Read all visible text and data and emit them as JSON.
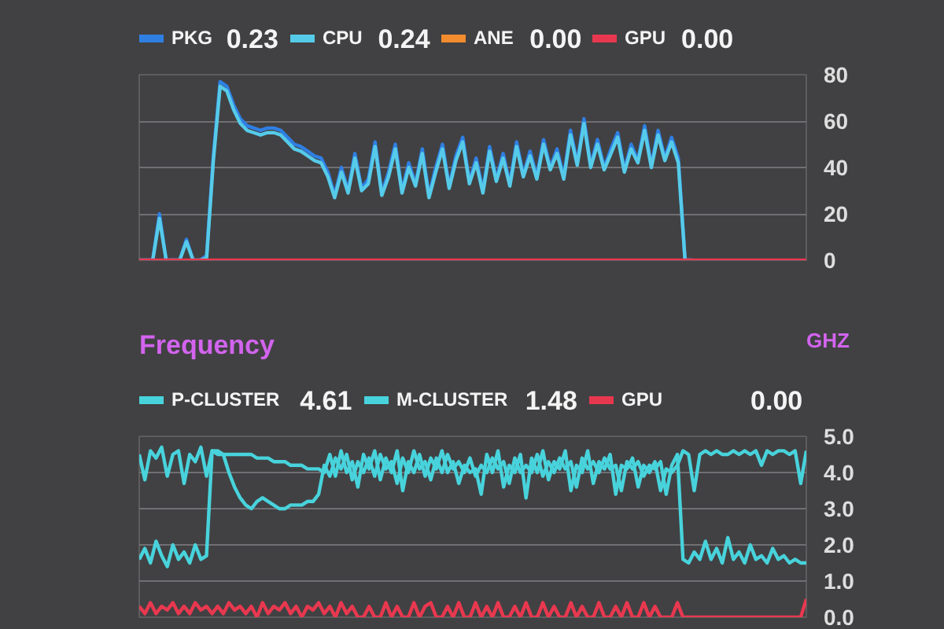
{
  "chart_data": [
    {
      "type": "line",
      "categories": [
        null,
        null,
        null,
        null,
        null,
        null,
        null,
        null,
        null,
        null,
        null,
        null,
        null,
        null,
        null,
        null,
        null,
        null,
        null,
        null,
        null,
        null,
        null,
        null,
        null,
        null,
        null,
        null,
        null,
        null,
        null,
        null,
        null,
        null,
        null,
        null,
        null,
        null,
        null,
        null,
        null,
        null,
        null,
        null,
        null,
        null,
        null,
        null,
        null,
        null,
        null,
        null,
        null,
        null,
        null,
        null,
        null,
        null,
        null,
        null,
        null,
        null,
        null,
        null,
        null,
        null,
        null,
        null,
        null,
        null,
        null,
        null,
        null,
        null,
        null,
        null,
        null,
        null,
        null,
        null,
        null,
        null,
        null,
        null,
        null,
        null,
        null,
        null,
        null,
        null,
        null,
        null,
        null,
        null,
        null,
        null,
        null,
        null,
        null,
        null
      ],
      "series": [
        {
          "name": "PKG",
          "color": "#2f7fe3",
          "values": [
            0,
            0,
            0,
            20,
            0,
            0,
            0,
            9,
            0,
            0,
            2,
            45,
            77,
            75,
            67,
            61,
            58,
            57,
            56,
            57,
            57,
            56,
            53,
            50,
            49,
            47,
            45,
            44,
            38,
            28,
            40,
            30,
            46,
            31,
            35,
            51,
            29,
            38,
            50,
            30,
            42,
            33,
            48,
            28,
            40,
            50,
            32,
            45,
            53,
            34,
            44,
            30,
            49,
            35,
            46,
            33,
            51,
            37,
            47,
            36,
            52,
            40,
            48,
            36,
            56,
            42,
            61,
            41,
            52,
            40,
            48,
            55,
            39,
            50,
            43,
            58,
            41,
            56,
            44,
            53,
            44,
            0,
            0,
            null,
            null,
            null,
            null,
            null,
            null,
            null,
            null,
            null,
            null,
            null,
            null,
            null,
            null,
            null,
            null,
            null
          ]
        },
        {
          "name": "CPU",
          "color": "#56cbe9",
          "values": [
            0,
            0,
            0,
            18,
            0,
            0,
            0,
            8,
            0,
            0,
            1,
            43,
            75,
            73,
            65,
            59,
            56,
            55,
            54,
            55,
            55,
            54,
            51,
            48,
            47,
            45,
            43,
            42,
            36,
            27,
            38,
            29,
            44,
            30,
            33,
            49,
            28,
            36,
            48,
            29,
            40,
            32,
            46,
            27,
            38,
            48,
            31,
            43,
            51,
            33,
            42,
            29,
            47,
            34,
            44,
            32,
            49,
            36,
            45,
            35,
            50,
            39,
            46,
            35,
            54,
            41,
            59,
            40,
            50,
            39,
            46,
            53,
            38,
            48,
            42,
            56,
            40,
            54,
            43,
            51,
            42,
            0,
            0,
            null,
            null,
            null,
            null,
            null,
            null,
            null,
            null,
            null,
            null,
            null,
            null,
            null,
            null,
            null,
            null,
            null
          ]
        },
        {
          "name": "ANE",
          "color": "#f28c2e",
          "values": [
            null,
            null,
            null,
            null,
            null,
            null,
            null,
            null,
            null,
            null,
            null,
            null,
            null,
            null,
            null,
            null,
            null,
            null,
            null,
            null,
            null,
            null,
            null,
            null,
            null,
            null,
            null,
            null,
            null,
            null,
            null,
            null,
            null,
            null,
            null,
            null,
            null,
            null,
            null,
            null,
            null,
            null,
            null,
            null,
            null,
            null,
            null,
            null,
            null,
            null,
            null,
            null,
            null,
            null,
            null,
            null,
            null,
            null,
            null,
            null,
            null,
            null,
            null,
            null,
            null,
            null,
            null,
            null,
            null,
            null,
            null,
            null,
            null,
            null,
            null,
            null,
            null,
            null,
            null,
            null,
            null,
            null,
            null,
            null,
            null,
            null,
            null,
            null,
            null,
            null,
            null,
            null,
            null,
            null,
            null,
            null,
            null,
            null,
            null,
            null
          ]
        },
        {
          "name": "GPU",
          "color": "#e8384f",
          "values": [
            0,
            0,
            0,
            0,
            0,
            0,
            0,
            0,
            0,
            0,
            0,
            0,
            0,
            0,
            0,
            0,
            0,
            0,
            0,
            0,
            0,
            0,
            0,
            0,
            0,
            0,
            0,
            0,
            0,
            0,
            0,
            0,
            0,
            0,
            0,
            0,
            0,
            0,
            0,
            0,
            0,
            0,
            0,
            0,
            0,
            0,
            0,
            0,
            0,
            0,
            0,
            0,
            0,
            0,
            0,
            0,
            0,
            0,
            0,
            0,
            0,
            0,
            0,
            0,
            0,
            0,
            0,
            0,
            0,
            0,
            0,
            0,
            0,
            0,
            0,
            0,
            0,
            0,
            0,
            0,
            0,
            0,
            0,
            0,
            0,
            0,
            0,
            0,
            0,
            0,
            0,
            0,
            0,
            0,
            0,
            0,
            0,
            0,
            0,
            0
          ]
        }
      ],
      "ylim": [
        0,
        80
      ],
      "yticks": [
        0,
        20,
        40,
        60,
        80
      ],
      "grid": "y",
      "legend": "top",
      "tick_labels": "y",
      "annotations": [
        "0.23",
        "0.24",
        "0.00",
        "0.00"
      ]
    },
    {
      "type": "line",
      "title": "Frequency",
      "ylabel": "GHZ",
      "categories": [
        null,
        null,
        null,
        null,
        null,
        null,
        null,
        null,
        null,
        null,
        null,
        null,
        null,
        null,
        null,
        null,
        null,
        null,
        null,
        null,
        null,
        null,
        null,
        null,
        null,
        null,
        null,
        null,
        null,
        null,
        null,
        null,
        null,
        null,
        null,
        null,
        null,
        null,
        null,
        null,
        null,
        null,
        null,
        null,
        null,
        null,
        null,
        null,
        null,
        null,
        null,
        null,
        null,
        null,
        null,
        null,
        null,
        null,
        null,
        null,
        null,
        null,
        null,
        null,
        null,
        null,
        null,
        null,
        null,
        null,
        null,
        null,
        null,
        null,
        null,
        null,
        null,
        null,
        null,
        null,
        null,
        null,
        null,
        null,
        null,
        null,
        null,
        null,
        null,
        null,
        null,
        null,
        null,
        null,
        null,
        null,
        null,
        null,
        null,
        null,
        null,
        null,
        null,
        null,
        null,
        null,
        null,
        null,
        null,
        null,
        null,
        null,
        null,
        null,
        null,
        null,
        null,
        null,
        null,
        null
      ],
      "series": [
        {
          "name": "P-CLUSTER",
          "color": "#48d3dc",
          "values": [
            4.5,
            3.8,
            4.6,
            4.4,
            4.7,
            3.9,
            4.5,
            4.6,
            3.7,
            4.5,
            4.3,
            4.7,
            3.9,
            4.6,
            4.5,
            4.5,
            4.5,
            4.5,
            4.5,
            4.5,
            4.5,
            4.4,
            4.4,
            4.4,
            4.3,
            4.3,
            4.3,
            4.2,
            4.2,
            4.2,
            4.1,
            4.1,
            4.1,
            4.0,
            4.5,
            3.9,
            4.6,
            4.0,
            4.3,
            3.6,
            4.5,
            4.1,
            4.6,
            3.8,
            4.4,
            4.0,
            4.6,
            3.5,
            4.3,
            4.0,
            4.5,
            3.9,
            4.4,
            4.1,
            4.6,
            4.0,
            4.3,
            3.7,
            4.2,
            4.0,
            4.1,
            3.4,
            4.5,
            4.0,
            4.6,
            3.6,
            4.2,
            4.0,
            4.5,
            3.3,
            4.4,
            4.0,
            4.6,
            3.8,
            4.3,
            4.1,
            4.6,
            3.5,
            4.2,
            4.0,
            4.6,
            3.7,
            4.3,
            4.1,
            4.5,
            3.4,
            4.2,
            4.1,
            4.4,
            3.6,
            4.2,
            4.0,
            4.3,
            3.5,
            4.1,
            4.0,
            4.2,
            4.6,
            4.5,
            3.5,
            4.5,
            4.6,
            4.5,
            4.6,
            4.5,
            4.5,
            4.6,
            4.5,
            4.6,
            4.5,
            4.6,
            4.2,
            4.6,
            4.5,
            4.6,
            4.6,
            4.5,
            4.6,
            3.7,
            4.6
          ]
        },
        {
          "name": "M-CLUSTER",
          "color": "#48d3dc",
          "values": [
            1.6,
            1.9,
            1.5,
            2.1,
            1.7,
            1.4,
            2.0,
            1.6,
            1.8,
            1.5,
            2.0,
            1.6,
            1.7,
            4.6,
            4.6,
            4.5,
            4.0,
            3.6,
            3.3,
            3.1,
            3.0,
            3.2,
            3.3,
            3.2,
            3.1,
            3.0,
            3.0,
            3.1,
            3.1,
            3.1,
            3.2,
            3.2,
            3.4,
            4.2,
            3.9,
            4.4,
            4.1,
            4.5,
            3.8,
            4.3,
            4.0,
            4.4,
            3.9,
            4.5,
            4.1,
            4.3,
            3.7,
            4.4,
            4.0,
            4.6,
            4.1,
            4.3,
            3.8,
            4.4,
            4.0,
            4.5,
            4.1,
            4.3,
            4.0,
            4.4,
            3.9,
            4.2,
            4.0,
            4.4,
            4.1,
            4.3,
            3.7,
            4.4,
            4.0,
            4.2,
            4.0,
            4.5,
            3.9,
            4.3,
            4.0,
            4.4,
            4.1,
            4.3,
            3.6,
            4.4,
            4.1,
            4.3,
            4.0,
            4.4,
            4.1,
            4.2,
            3.5,
            4.3,
            4.1,
            4.3,
            3.9,
            4.2,
            4.1,
            4.3,
            3.4,
            4.2,
            4.5,
            1.6,
            1.5,
            1.8,
            1.6,
            2.1,
            1.6,
            1.9,
            1.5,
            2.2,
            1.6,
            1.8,
            1.5,
            2.0,
            1.6,
            1.7,
            1.5,
            1.9,
            1.6,
            1.7,
            1.5,
            1.6,
            1.5,
            1.5
          ]
        },
        {
          "name": "GPU",
          "color": "#e8384f",
          "values": [
            0.3,
            0.1,
            0.4,
            0.1,
            0.3,
            0.2,
            0.4,
            0.1,
            0.3,
            0.1,
            0.4,
            0.2,
            0.3,
            0.1,
            0.3,
            0.1,
            0.4,
            0.2,
            0.3,
            0.1,
            0.3,
            0,
            0.4,
            0.1,
            0.3,
            0.2,
            0.4,
            0.1,
            0.3,
            0,
            0.3,
            0.2,
            0.4,
            0.1,
            0.3,
            0,
            0.4,
            0.1,
            0.3,
            0,
            0,
            0.3,
            0,
            0,
            0.4,
            0,
            0.3,
            0,
            0,
            0.4,
            0,
            0.3,
            0.4,
            0,
            0,
            0.3,
            0,
            0.4,
            0,
            0,
            0.4,
            0,
            0.3,
            0,
            0.4,
            0,
            0,
            0.3,
            0,
            0.4,
            0,
            0,
            0.4,
            0,
            0.3,
            0,
            0,
            0.4,
            0,
            0.3,
            0,
            0,
            0.4,
            0,
            0,
            0.3,
            0,
            0.4,
            0,
            0,
            0.4,
            0,
            0.3,
            0,
            0,
            0,
            0.4,
            0,
            0,
            0,
            0,
            0,
            0,
            0,
            0,
            0,
            0,
            0,
            0,
            0,
            0,
            0,
            0,
            0,
            0,
            0,
            0,
            0,
            0,
            0.5
          ]
        }
      ],
      "ylim": [
        0,
        5
      ],
      "yticks": [
        {
          "value": 0,
          "label": "0.0"
        },
        {
          "value": 1,
          "label": "1.0"
        },
        {
          "value": 2,
          "label": "2.0"
        },
        {
          "value": 3,
          "label": "3.0"
        },
        {
          "value": 4,
          "label": "4.0"
        },
        {
          "value": 5,
          "label": "5.0"
        }
      ],
      "grid": "y",
      "legend": "top",
      "tick_labels": "y",
      "annotations": [
        "4.61",
        "1.48",
        "0.00"
      ]
    }
  ]
}
